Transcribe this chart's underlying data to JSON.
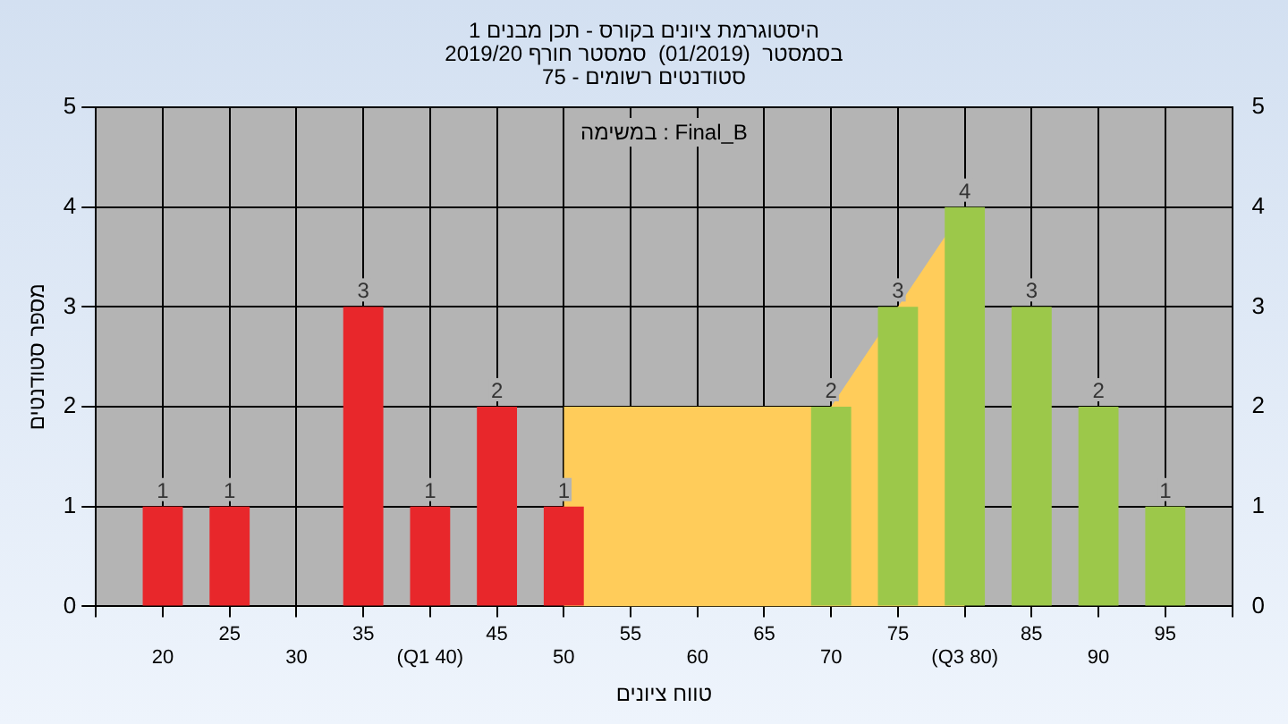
{
  "chart_data": {
    "type": "bar",
    "title": "היסטוגרמת ציונים בקורס - תכן מבנים 1",
    "subtitle": "בסמסטר  (01/2019)  סמסטר חורף 2019/20\nסטודנטים רשומים - 75",
    "xlabel": "טווח ציונים",
    "ylabel": "מספר סטודנטים",
    "annotations": [
      "Final_B : במשימה"
    ],
    "categories": [
      null,
      "20",
      "25",
      "30",
      "35",
      "(Q1 40)",
      "45",
      "50",
      "55",
      "60",
      "65",
      "70",
      "75",
      "(Q3 80)",
      "85",
      "90",
      "95",
      null
    ],
    "series": [
      {
        "values": [
          null,
          1,
          1,
          null,
          3,
          1,
          2,
          1,
          null,
          null,
          null,
          2,
          3,
          4,
          3,
          2,
          1,
          null
        ],
        "value_labels": [
          null,
          "1",
          "1",
          null,
          "3",
          "1",
          "2",
          "1",
          null,
          null,
          null,
          "2",
          "3",
          "4",
          "3",
          "2",
          "1",
          null
        ],
        "colors": [
          "#e8272b",
          "#e8272b",
          "#e8272b",
          "#e8272b",
          "#e8272b",
          "#e8272b",
          "#e8272b",
          "#e8272b",
          "#e8272b",
          "#e8272b",
          "#e8272b",
          "#9cc84a",
          "#9cc84a",
          "#9cc84a",
          "#9cc84a",
          "#9cc84a",
          "#9cc84a",
          "#9cc84a"
        ]
      },
      {
        "type": "area",
        "color": "#ffcc5a",
        "values": [
          null,
          null,
          null,
          null,
          null,
          null,
          null,
          2,
          2,
          2,
          2,
          2,
          3,
          4,
          null,
          null,
          null,
          null
        ]
      }
    ],
    "ylim": [
      0,
      5
    ],
    "yticks": [
      0,
      1,
      2,
      3,
      4,
      5
    ],
    "y2lim": [
      0,
      5
    ],
    "y2ticks": [
      0,
      1,
      2,
      3,
      4,
      5
    ],
    "grid": true,
    "legend": false
  }
}
